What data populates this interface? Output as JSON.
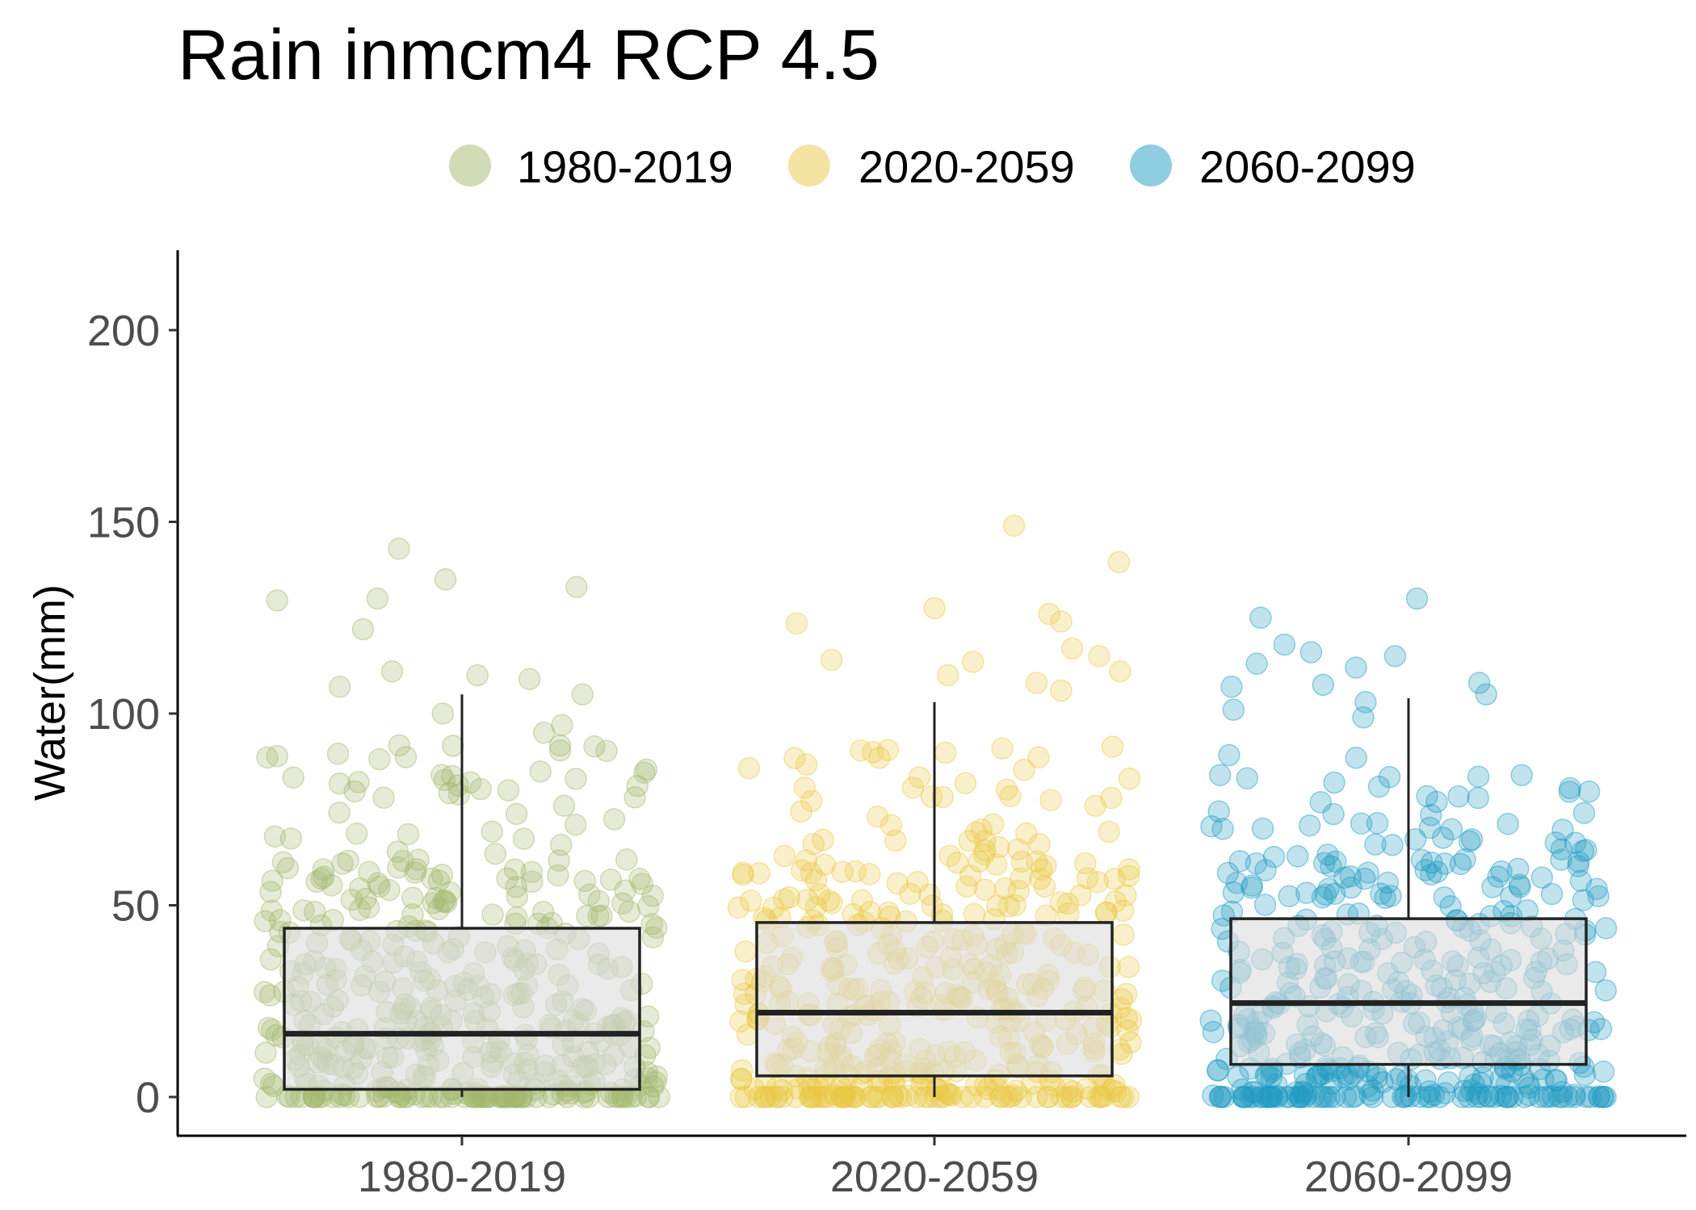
{
  "chart_data": {
    "type": "box+jitter",
    "title": "Rain inmcm4 RCP 4.5",
    "ylabel": "Water(mm)",
    "xlabel": "",
    "ylim": [
      -10,
      220
    ],
    "y_ticks": [
      0,
      50,
      100,
      150,
      200
    ],
    "grid": false,
    "legend_position": "top",
    "categories": [
      "1980-2019",
      "2020-2059",
      "2060-2099"
    ],
    "colors": [
      "#a3b86c",
      "#ebc843",
      "#1f9bc3"
    ],
    "box_fill": "#dcdcdc",
    "box_stroke": "#222222",
    "boxes": [
      {
        "name": "1980-2019",
        "min": 0,
        "q1": 2,
        "median": 16.5,
        "q3": 44,
        "max": 105
      },
      {
        "name": "2020-2059",
        "min": 0,
        "q1": 5.5,
        "median": 22,
        "q3": 45.5,
        "max": 103
      },
      {
        "name": "2060-2099",
        "min": 0,
        "q1": 8.5,
        "median": 24.5,
        "q3": 46.5,
        "max": 104
      }
    ],
    "highlighted_points": [
      {
        "group": "1980-2019",
        "values": [
          143,
          135,
          133,
          130,
          129.5,
          122,
          111,
          110,
          109,
          107,
          105,
          100,
          97,
          95
        ]
      },
      {
        "group": "2020-2059",
        "values": [
          149,
          139.5,
          127.5,
          126,
          124,
          123.5,
          117,
          115,
          114,
          113.5,
          111,
          110,
          108,
          106
        ]
      },
      {
        "group": "2060-2099",
        "values": [
          130,
          125,
          118,
          116,
          115,
          113,
          112,
          108,
          107.5,
          107,
          105,
          103,
          101,
          99
        ]
      }
    ]
  }
}
